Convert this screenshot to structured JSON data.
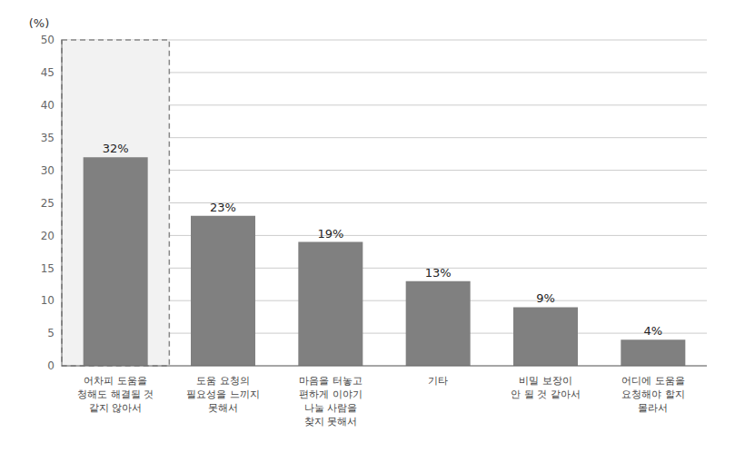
{
  "chart_data": {
    "type": "bar",
    "y_label": "(%)",
    "categories": [
      "어차피 도움을\n청해도 해결될 것\n같지 않아서",
      "도움 요청의\n필요성을 느끼지\n못해서",
      "마음을 터놓고\n편하게 이야기\n나눌 사람을\n찾지 못해서",
      "기타",
      "비밀 보장이\n안 될 것 같아서",
      "어디에 도움을\n요청해야 할지\n몰라서"
    ],
    "values": [
      32,
      23,
      19,
      13,
      9,
      4
    ],
    "value_labels": [
      "32%",
      "23%",
      "19%",
      "13%",
      "9%",
      "4%"
    ],
    "data_labels": true,
    "color": "#808080",
    "ylim": [
      0,
      50
    ],
    "yticks": [
      0,
      5,
      10,
      15,
      20,
      25,
      30,
      35,
      40,
      45,
      50
    ],
    "grid": true
  }
}
